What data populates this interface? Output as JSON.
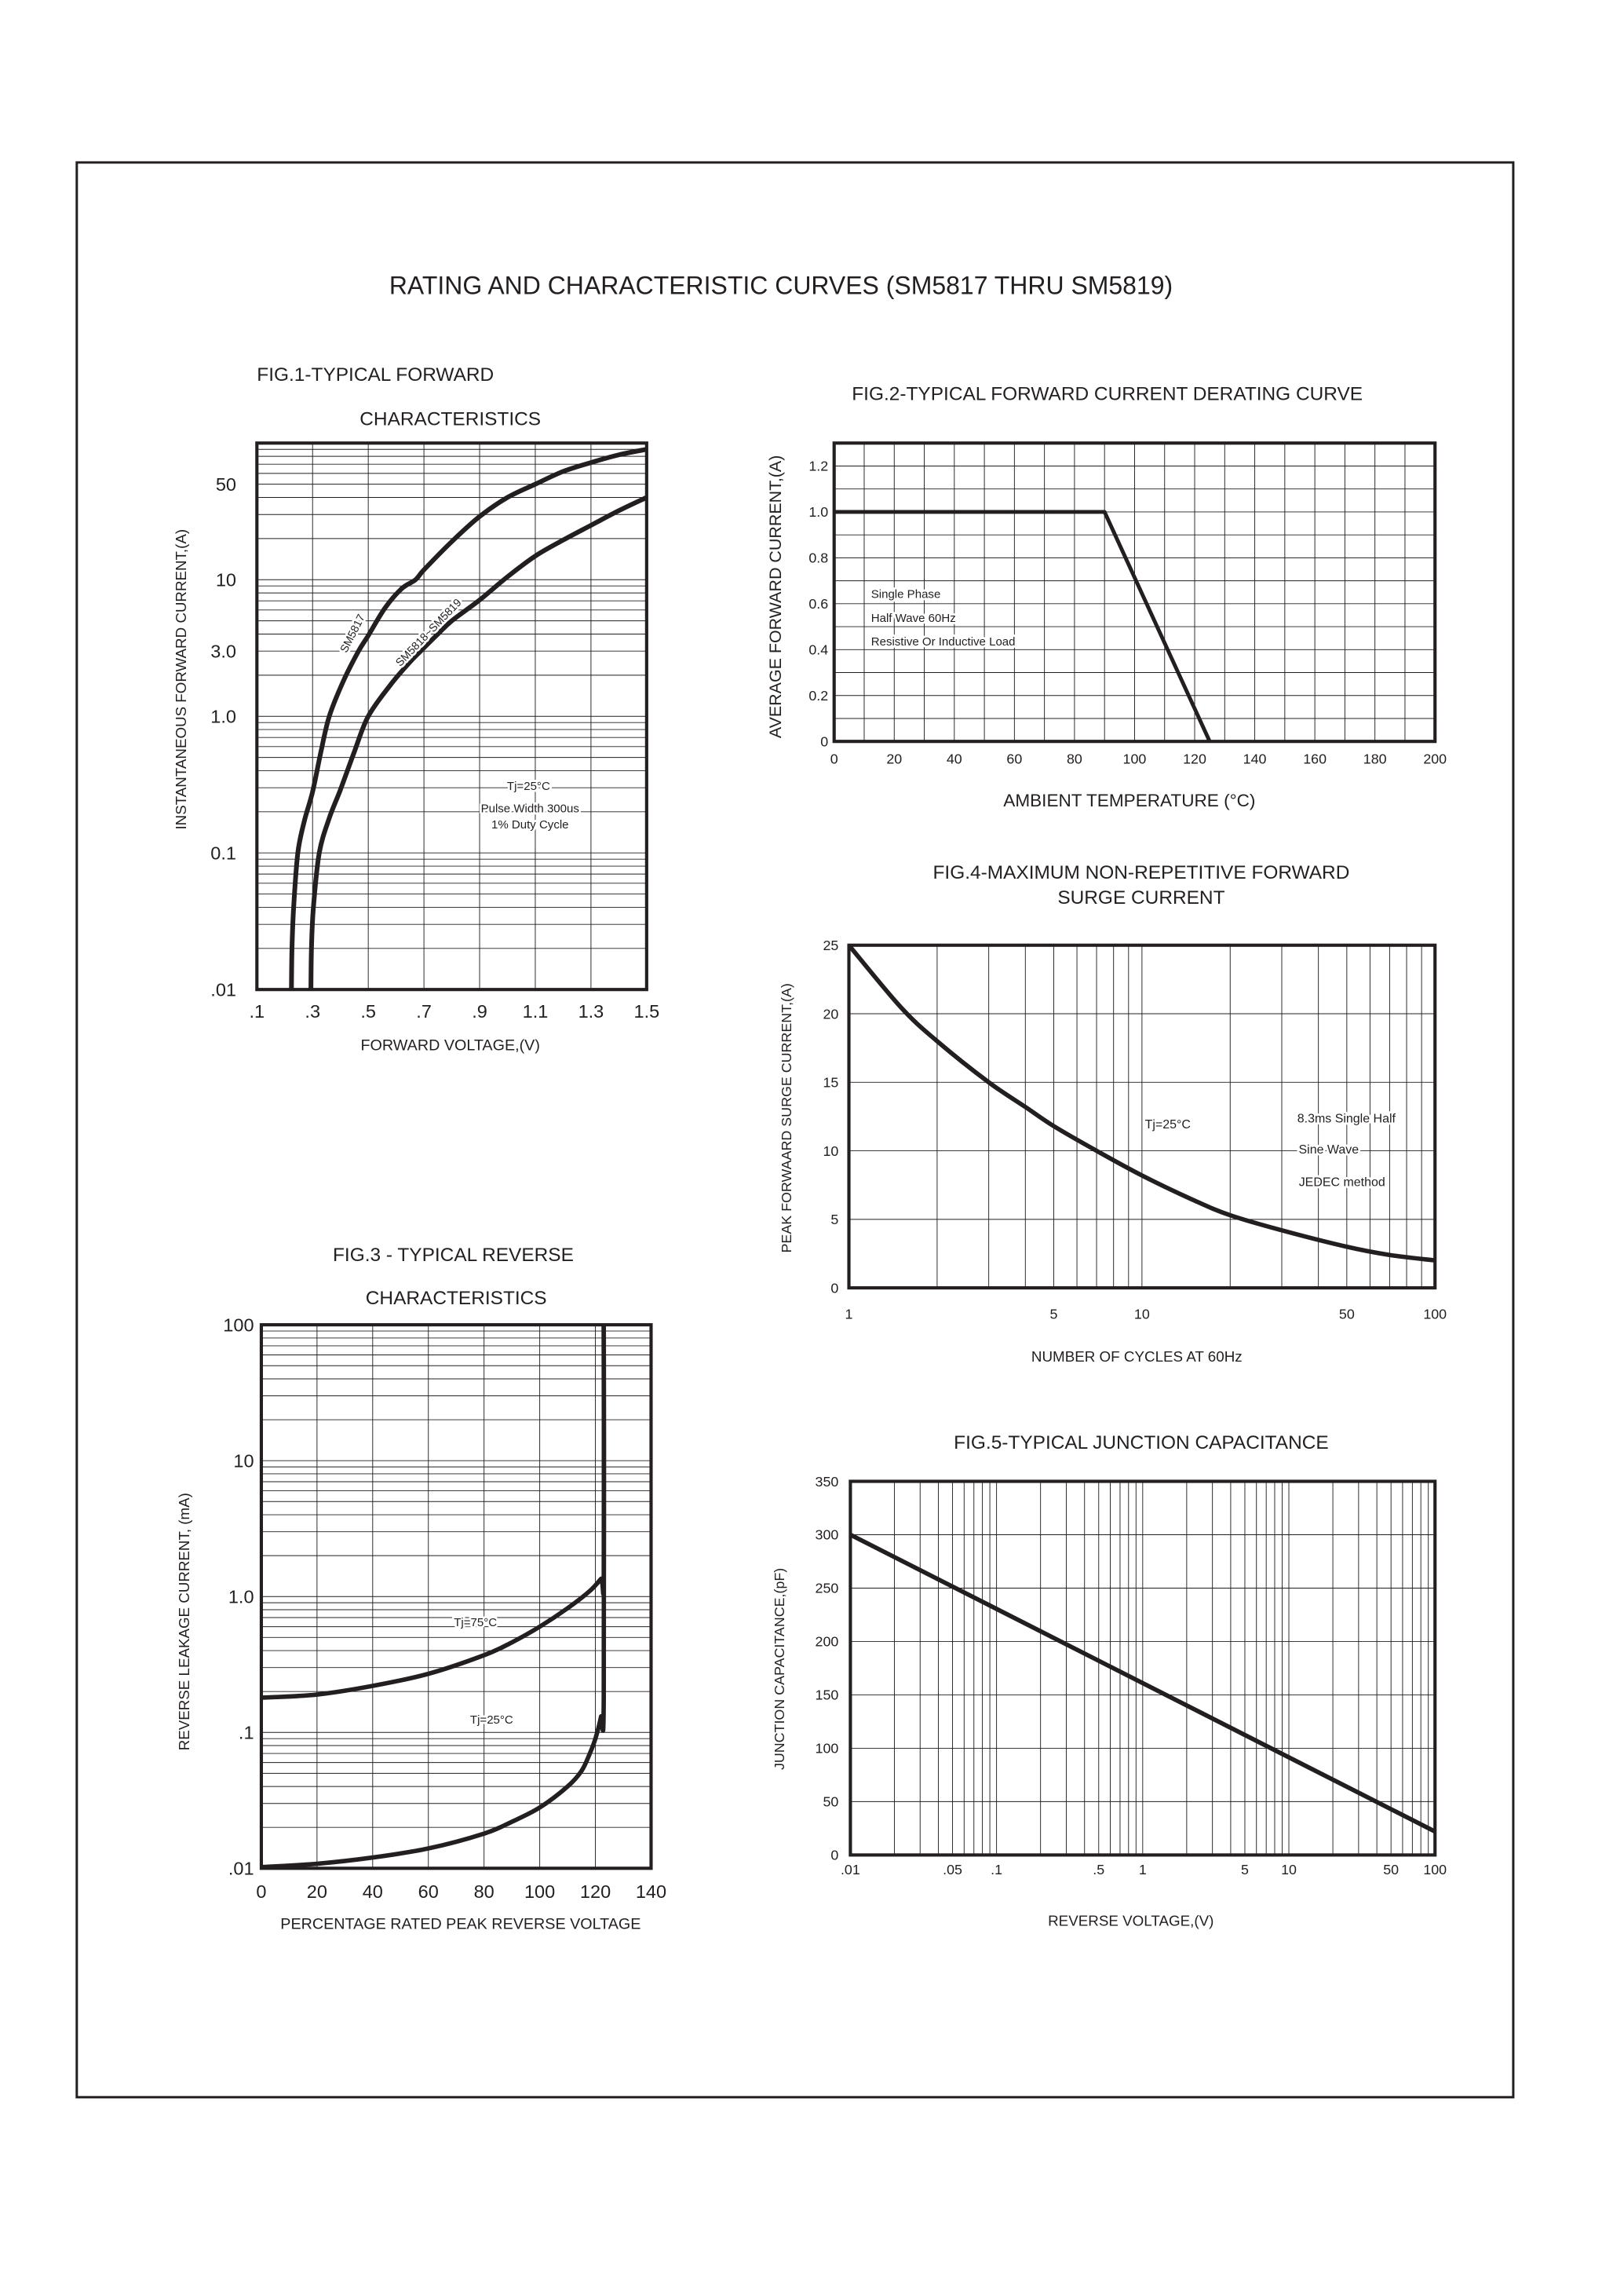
{
  "page_title": "RATING AND CHARACTERISTIC CURVES (SM5817 THRU SM5819)",
  "colors": {
    "ink": "#231f20",
    "grid": "#231f20",
    "background": "#ffffff"
  },
  "chart_data": [
    {
      "id": "fig1",
      "type": "line",
      "title": [
        "FIG.1-TYPICAL FORWARD",
        "CHARACTERISTICS"
      ],
      "xlabel": "FORWARD VOLTAGE,(V)",
      "ylabel": "INSTANTANEOUS FORWARD CURRENT,(A)",
      "xscale": "linear",
      "yscale": "log",
      "xlim": [
        0.1,
        1.5
      ],
      "ylim": [
        0.01,
        100
      ],
      "grid": true,
      "xticks": [
        {
          "v": 0.1,
          "label": ".1"
        },
        {
          "v": 0.3,
          "label": ".3"
        },
        {
          "v": 0.5,
          "label": ".5"
        },
        {
          "v": 0.7,
          "label": ".7"
        },
        {
          "v": 0.9,
          "label": ".9"
        },
        {
          "v": 1.1,
          "label": "1.1"
        },
        {
          "v": 1.3,
          "label": "1.3"
        },
        {
          "v": 1.5,
          "label": "1.5"
        }
      ],
      "yticks": [
        {
          "v": 50,
          "label": "50"
        },
        {
          "v": 10,
          "label": "10"
        },
        {
          "v": 3,
          "label": "3.0"
        },
        {
          "v": 1,
          "label": "1.0"
        },
        {
          "v": 0.1,
          "label": "0.1"
        },
        {
          "v": 0.01,
          "label": ".01"
        }
      ],
      "series": [
        {
          "name": "SM5817",
          "x": [
            0.224,
            0.226,
            0.232,
            0.247,
            0.27,
            0.3,
            0.33,
            0.36,
            0.41,
            0.465,
            0.5,
            0.56,
            0.62,
            0.67,
            0.7,
            0.8,
            0.9,
            1.0,
            1.1,
            1.2,
            1.3,
            1.4,
            1.5
          ],
          "y": [
            0.01,
            0.02,
            0.04,
            0.1,
            0.17,
            0.28,
            0.55,
            1.0,
            1.8,
            3.0,
            3.9,
            6.2,
            8.6,
            10,
            11.8,
            19,
            29,
            40,
            50,
            62,
            72,
            82,
            90
          ]
        },
        {
          "name": "SM5818~SM5819",
          "x": [
            0.294,
            0.296,
            0.303,
            0.324,
            0.36,
            0.4,
            0.45,
            0.5,
            0.58,
            0.65,
            0.688,
            0.75,
            0.8,
            0.9,
            1.0,
            1.1,
            1.2,
            1.3,
            1.4,
            1.5
          ],
          "y": [
            0.01,
            0.02,
            0.04,
            0.1,
            0.18,
            0.29,
            0.55,
            1.0,
            1.7,
            2.5,
            3.0,
            4.0,
            5.0,
            7.1,
            10.5,
            14.9,
            19.5,
            25,
            32,
            40
          ]
        }
      ],
      "annotations": [
        "Tj=25°C",
        "Pulse Width 300us",
        "1% Duty Cycle"
      ]
    },
    {
      "id": "fig2",
      "type": "line",
      "title": [
        "FIG.2-TYPICAL FORWARD CURRENT DERATING CURVE"
      ],
      "xlabel": "AMBIENT TEMPERATURE (°C)",
      "ylabel": "AVERAGE FORWARD CURRENT,(A)",
      "xscale": "linear",
      "yscale": "linear",
      "xlim": [
        0,
        200
      ],
      "ylim": [
        0,
        1.3
      ],
      "grid": true,
      "xticks": [
        {
          "v": 0,
          "label": "0"
        },
        {
          "v": 20,
          "label": "20"
        },
        {
          "v": 40,
          "label": "40"
        },
        {
          "v": 60,
          "label": "60"
        },
        {
          "v": 80,
          "label": "80"
        },
        {
          "v": 100,
          "label": "100"
        },
        {
          "v": 120,
          "label": "120"
        },
        {
          "v": 140,
          "label": "140"
        },
        {
          "v": 160,
          "label": "160"
        },
        {
          "v": 180,
          "label": "180"
        },
        {
          "v": 200,
          "label": "200"
        }
      ],
      "yticks": [
        {
          "v": 0,
          "label": "0"
        },
        {
          "v": 0.2,
          "label": "0.2"
        },
        {
          "v": 0.4,
          "label": "0.4"
        },
        {
          "v": 0.6,
          "label": "0.6"
        },
        {
          "v": 0.8,
          "label": "0.8"
        },
        {
          "v": 1.0,
          "label": "1.0"
        },
        {
          "v": 1.2,
          "label": "1.2"
        }
      ],
      "series": [
        {
          "x": [
            0,
            90,
            125
          ],
          "y": [
            1.0,
            1.0,
            0
          ]
        }
      ],
      "annotations": [
        "Single Phase",
        "Half Wave 60Hz",
        "Resistive Or Inductive Load"
      ]
    },
    {
      "id": "fig3",
      "type": "line",
      "title": [
        "FIG.3 - TYPICAL REVERSE",
        "CHARACTERISTICS"
      ],
      "xlabel": "PERCENTAGE RATED PEAK REVERSE VOLTAGE",
      "ylabel": "REVERSE LEAKAGE CURRENT, (mA)",
      "xscale": "linear",
      "yscale": "log",
      "xlim": [
        0,
        140
      ],
      "ylim": [
        0.01,
        100
      ],
      "grid": true,
      "xticks": [
        {
          "v": 0,
          "label": "0"
        },
        {
          "v": 20,
          "label": "20"
        },
        {
          "v": 40,
          "label": "40"
        },
        {
          "v": 60,
          "label": "60"
        },
        {
          "v": 80,
          "label": "80"
        },
        {
          "v": 100,
          "label": "100"
        },
        {
          "v": 120,
          "label": "120"
        },
        {
          "v": 140,
          "label": "140"
        }
      ],
      "yticks": [
        {
          "v": 100,
          "label": "100"
        },
        {
          "v": 10,
          "label": "10"
        },
        {
          "v": 1,
          "label": "1.0"
        },
        {
          "v": 0.1,
          "label": ".1"
        },
        {
          "v": 0.01,
          "label": ".01"
        }
      ],
      "series": [
        {
          "name": "Tj=75°C",
          "x": [
            0,
            20,
            40,
            60,
            80,
            90,
            100,
            110,
            118,
            122,
            123,
            123
          ],
          "y": [
            0.18,
            0.19,
            0.22,
            0.27,
            0.37,
            0.46,
            0.6,
            0.82,
            1.1,
            1.35,
            1.45,
            100
          ]
        },
        {
          "name": "Tj=25°C",
          "x": [
            0,
            20,
            40,
            60,
            80,
            90,
            100,
            110,
            115,
            118,
            120,
            122,
            123,
            123
          ],
          "y": [
            0.0102,
            0.0108,
            0.012,
            0.014,
            0.018,
            0.022,
            0.028,
            0.04,
            0.052,
            0.07,
            0.09,
            0.13,
            0.18,
            100
          ]
        }
      ]
    },
    {
      "id": "fig4",
      "type": "line",
      "title": [
        "FIG.4-MAXIMUM NON-REPETITIVE FORWARD",
        "SURGE CURRENT"
      ],
      "xlabel": "NUMBER OF CYCLES AT 60Hz",
      "ylabel": "PEAK FORWAARD SURGE CURRENT,(A)",
      "xscale": "log",
      "yscale": "linear",
      "xlim": [
        1,
        100
      ],
      "ylim": [
        0,
        25
      ],
      "grid": true,
      "xticks": [
        {
          "v": 1,
          "label": "1"
        },
        {
          "v": 5,
          "label": "5"
        },
        {
          "v": 10,
          "label": "10"
        },
        {
          "v": 50,
          "label": "50"
        },
        {
          "v": 100,
          "label": "100"
        }
      ],
      "yticks": [
        {
          "v": 0,
          "label": "0"
        },
        {
          "v": 5,
          "label": "5"
        },
        {
          "v": 10,
          "label": "10"
        },
        {
          "v": 15,
          "label": "15"
        },
        {
          "v": 20,
          "label": "20"
        },
        {
          "v": 25,
          "label": "25"
        }
      ],
      "series": [
        {
          "x": [
            1,
            1.5,
            2,
            3,
            4,
            5,
            7,
            10,
            15,
            20,
            30,
            50,
            70,
            100
          ],
          "y": [
            25,
            20.5,
            18,
            15,
            13.2,
            11.8,
            10,
            8.2,
            6.4,
            5.3,
            4.2,
            3.0,
            2.4,
            2.0
          ]
        }
      ],
      "annotations": [
        "Tj=25°C",
        "8.3ms Single Half",
        "Sine Wave",
        "JEDEC method"
      ]
    },
    {
      "id": "fig5",
      "type": "line",
      "title": [
        "FIG.5-TYPICAL JUNCTION CAPACITANCE"
      ],
      "xlabel": "REVERSE VOLTAGE,(V)",
      "ylabel": "JUNCTION CAPACITANCE,(pF)",
      "xscale": "log",
      "yscale": "linear",
      "xlim": [
        0.01,
        100
      ],
      "ylim": [
        0,
        350
      ],
      "grid": true,
      "xticks": [
        {
          "v": 0.01,
          "label": ".01"
        },
        {
          "v": 0.05,
          "label": ".05"
        },
        {
          "v": 0.1,
          "label": ".1"
        },
        {
          "v": 0.5,
          "label": ".5"
        },
        {
          "v": 1,
          "label": "1"
        },
        {
          "v": 5,
          "label": "5"
        },
        {
          "v": 10,
          "label": "10"
        },
        {
          "v": 50,
          "label": "50"
        },
        {
          "v": 100,
          "label": "100"
        }
      ],
      "yticks": [
        {
          "v": 0,
          "label": "0"
        },
        {
          "v": 50,
          "label": "50"
        },
        {
          "v": 100,
          "label": "100"
        },
        {
          "v": 150,
          "label": "150"
        },
        {
          "v": 200,
          "label": "200"
        },
        {
          "v": 250,
          "label": "250"
        },
        {
          "v": 300,
          "label": "300"
        },
        {
          "v": 350,
          "label": "350"
        }
      ],
      "series": [
        {
          "x": [
            0.01,
            100
          ],
          "y": [
            300,
            22
          ]
        }
      ]
    }
  ]
}
